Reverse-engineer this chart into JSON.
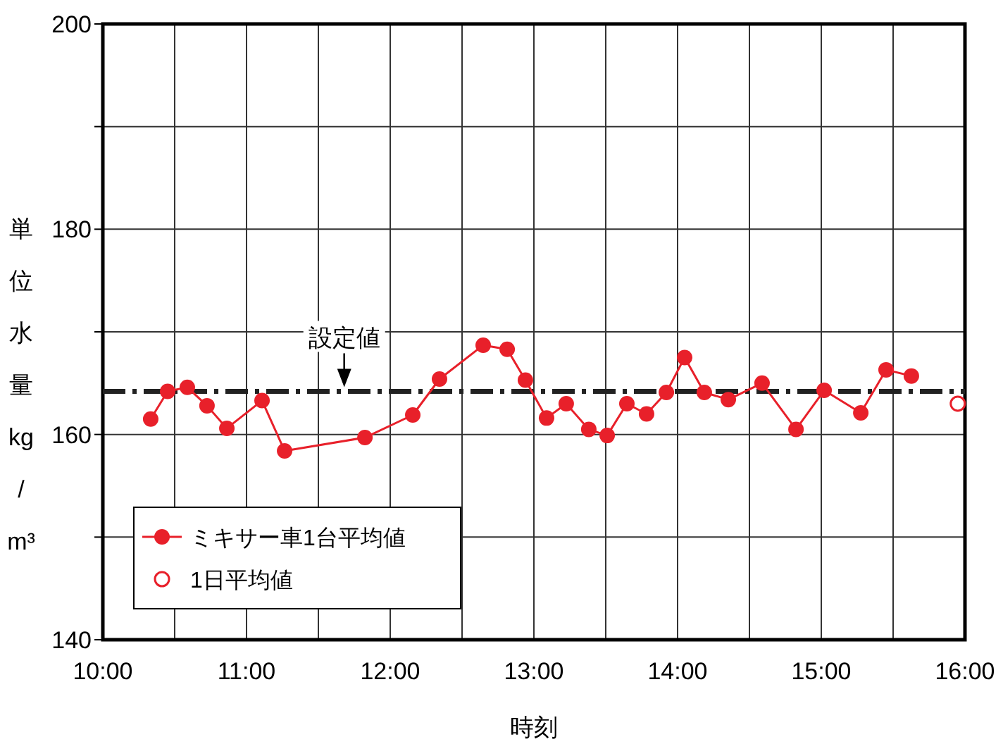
{
  "chart_data": {
    "type": "line",
    "xlabel": "時刻",
    "ylabel": "単位水量kg/m³",
    "xlim": [
      10,
      16
    ],
    "ylim": [
      140,
      200
    ],
    "xticks": [
      {
        "value": 10,
        "label": "10:00"
      },
      {
        "value": 11,
        "label": "11:00"
      },
      {
        "value": 12,
        "label": "12:00"
      },
      {
        "value": 13,
        "label": "13:00"
      },
      {
        "value": 14,
        "label": "14:00"
      },
      {
        "value": 15,
        "label": "15:00"
      },
      {
        "value": 16,
        "label": "16:00"
      }
    ],
    "yticks": [
      140,
      {
        "value": 150,
        "label": null
      },
      160,
      {
        "value": 170,
        "label": null
      },
      180,
      {
        "value": 190,
        "label": null
      },
      200
    ],
    "grid": true,
    "legend": "bottom left",
    "marker": "circle",
    "line_style": "solid",
    "series": [
      {
        "name": "ミキサー車1台平均値",
        "color": "#e8202a",
        "x": [
          10.333,
          10.451,
          10.588,
          10.725,
          10.863,
          11.108,
          11.265,
          11.824,
          12.157,
          12.343,
          12.647,
          12.814,
          12.941,
          13.088,
          13.225,
          13.382,
          13.51,
          13.647,
          13.784,
          13.922,
          14.049,
          14.186,
          14.353,
          14.588,
          14.824,
          15.02,
          15.275,
          15.451,
          15.627
        ],
        "values": [
          161.5,
          164.2,
          164.6,
          162.8,
          160.6,
          163.3,
          158.4,
          159.7,
          161.9,
          165.4,
          168.7,
          168.3,
          165.3,
          161.6,
          163.0,
          160.5,
          159.9,
          163.0,
          162.0,
          164.1,
          167.5,
          164.1,
          163.4,
          165.0,
          160.5,
          164.3,
          162.1,
          166.3,
          165.7
        ]
      },
      {
        "name": "1日平均値",
        "type": "scatter",
        "color": "#e8202a",
        "x": [
          15.95
        ],
        "values": [
          163.0
        ]
      }
    ],
    "ref_lines": [
      {
        "axis": "y",
        "value": 164.2,
        "label": "設定値",
        "color": "#222222",
        "line_style": "dashdot"
      }
    ]
  }
}
